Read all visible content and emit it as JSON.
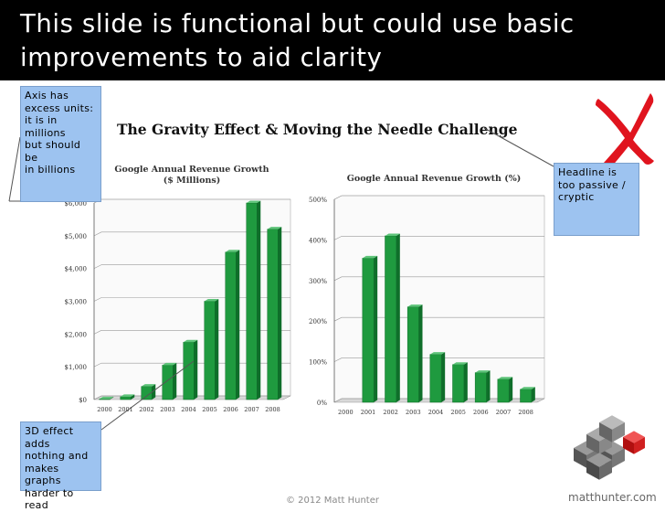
{
  "slide": {
    "title": "This slide is functional but could use basic improvements to aid clarity",
    "headline": "The Gravity Effect & Moving the Needle Challenge",
    "footer": "© 2012 Matt Hunter",
    "brand": "matthunter.com",
    "accent_green": "#2e9e4a",
    "note_color": "#9dc3f0",
    "mark_color": "#e0141e"
  },
  "notes": {
    "axis": "Axis has\nexcess units:\nit is in millions\nbut should be\nin billions",
    "three_d": "3D effect adds\nnothing and\nmakes graphs\nharder to read",
    "headline": "Headline is\ntoo passive /\ncryptic"
  },
  "icons": {
    "cross_mark": "red-x-mark-icon",
    "logo": "cube-logo-icon"
  },
  "chart_data": [
    {
      "type": "bar",
      "title": "Google Annual Revenue Growth",
      "subtitle": "($ Millions)",
      "categories": [
        "2000",
        "2001",
        "2002",
        "2003",
        "2004",
        "2005",
        "2006",
        "2007",
        "2008"
      ],
      "values": [
        19,
        86,
        400,
        1050,
        1750,
        3000,
        4500,
        6000,
        5200
      ],
      "ylim": [
        0,
        6000
      ],
      "yticks": [
        0,
        1000,
        2000,
        3000,
        4000,
        5000,
        6000
      ],
      "ytick_labels": [
        "$0",
        "$1,000",
        "$2,000",
        "$3,000",
        "$4,000",
        "$5,000",
        "$6,000"
      ],
      "grid": true,
      "style": "3d"
    },
    {
      "type": "bar",
      "title": "Google Annual Revenue Growth (%)",
      "categories": [
        "2000",
        "2001",
        "2002",
        "2003",
        "2004",
        "2005",
        "2006",
        "2007",
        "2008"
      ],
      "values": [
        0,
        355,
        410,
        235,
        118,
        93,
        73,
        57,
        32
      ],
      "ylim": [
        0,
        500
      ],
      "yticks": [
        0,
        100,
        200,
        300,
        400,
        500
      ],
      "ytick_labels": [
        "0%",
        "100%",
        "200%",
        "300%",
        "400%",
        "500%"
      ],
      "grid": true,
      "style": "3d"
    }
  ]
}
